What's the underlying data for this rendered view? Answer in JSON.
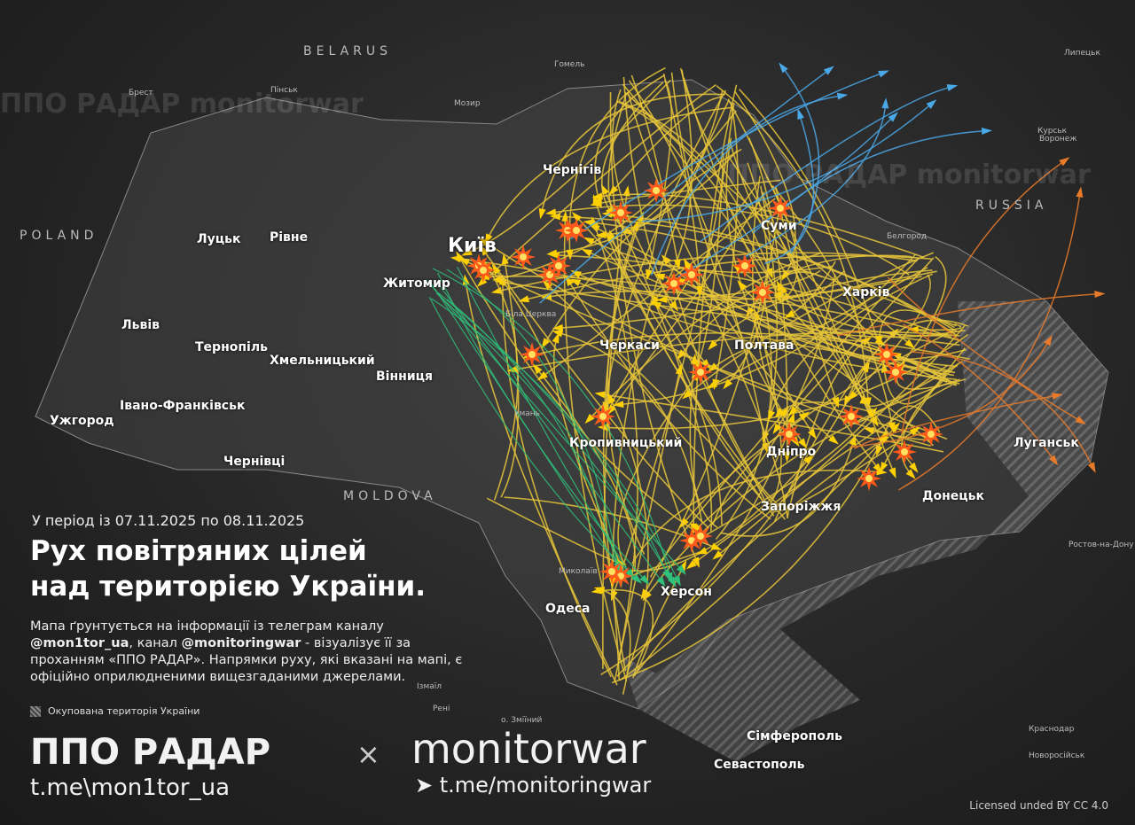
{
  "countries": [
    "BELARUS",
    "POLAND",
    "MOLDOVA",
    "RUSSIA"
  ],
  "cities": [
    "Київ",
    "Житомир",
    "Чернігів",
    "Суми",
    "Харків",
    "Полтава",
    "Черкаси",
    "Вінниця",
    "Хмельницький",
    "Тернопіль",
    "Львів",
    "Луцьк",
    "Рівне",
    "Ужгород",
    "Івано-Франківськ",
    "Чернівці",
    "Кропивницький",
    "Дніпро",
    "Запоріжжя",
    "Донецьк",
    "Луганськ",
    "Одеса",
    "Херсон",
    "Сімферополь",
    "Севастополь"
  ],
  "small_places": [
    "Брест",
    "Пінськ",
    "Гомель",
    "Мозир",
    "Курськ",
    "Воронеж",
    "Липецьк",
    "Белгород",
    "Ростов-на-Дону",
    "Краснодар",
    "Новоросійськ",
    "Біла Церква",
    "Умань",
    "Миколаїв",
    "Ізмаїл",
    "Рені",
    "о. Зміїний"
  ],
  "period": "У період із 07.11.2025 по 08.11.2025",
  "title_line1": "Рух повітряних цілей",
  "title_line2": "над територією України.",
  "desc": {
    "p1": "Мапа ґрунтується на інформації із телеграм каналу ",
    "h1": "@mon1tor_ua",
    "p2": ", канал ",
    "h2": "@monitoringwar",
    "p3": " - візуалізує її за проханням «ППО РАДАР». Напрямки руху, які вказані на мапі, є офіційно оприлюдненими вищезгаданими джерелами."
  },
  "legend": "Окупована територія України",
  "brand_left": "ППО РАДАР",
  "brand_x": "×",
  "brand_right": "monitorwar",
  "link_left": "t.me\\mon1tor_ua",
  "link_right": "t.me/monitoringwar",
  "license": "Licensed unded BY CC 4.0",
  "watermark": "ППО РАДАР  monitorwar",
  "colors": {
    "drone_track": "#e8c53a",
    "missile_blue": "#4aa8e8",
    "missile_orange": "#e87a2a",
    "missile_red": "#e83030",
    "track_green": "#2fc07a",
    "explosion": "#ff5a1a",
    "occupied_hatch": "#8a8a8a"
  },
  "icons": [
    "drone-arrow-icon",
    "explosion-icon",
    "telegram-icon",
    "city-marker-icon"
  ]
}
